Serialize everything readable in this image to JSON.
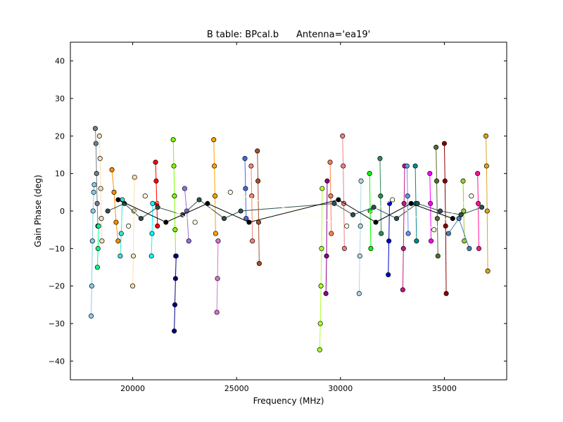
{
  "chart_data": {
    "type": "scatter",
    "title": "B table: BPcal.b      Antenna='ea19'",
    "xlabel": "Frequency (MHz)",
    "ylabel": "Gain Phase (deg)",
    "xlim": [
      17000,
      38000
    ],
    "ylim": [
      -45,
      45
    ],
    "xticks": [
      20000,
      25000,
      30000,
      35000
    ],
    "yticks": [
      -40,
      -30,
      -20,
      -10,
      0,
      10,
      20,
      30,
      40
    ],
    "grid": false,
    "legend": "none",
    "series": [
      {
        "color": "#87ceeb",
        "x": [
          18000,
          18030,
          18060,
          18090,
          18120,
          18150
        ],
        "y": [
          -28,
          -20,
          -8,
          0,
          5,
          7
        ]
      },
      {
        "color": "#708090",
        "x": [
          18200,
          18230,
          18260,
          18290,
          18320
        ],
        "y": [
          22,
          18,
          10,
          2,
          -4
        ]
      },
      {
        "color": "#f5deb3",
        "x": [
          18400,
          18430,
          18460,
          18490,
          18520
        ],
        "y": [
          20,
          14,
          6,
          -2,
          -8
        ]
      },
      {
        "color": "#00ff7f",
        "x": [
          18300,
          18330,
          18360
        ],
        "y": [
          -15,
          -10,
          -4
        ]
      },
      {
        "color": "#ff8c00",
        "x": [
          19000,
          19100,
          19200,
          19300
        ],
        "y": [
          11,
          5,
          -3,
          -8
        ]
      },
      {
        "color": "#40e0d0",
        "x": [
          19400,
          19450,
          19500
        ],
        "y": [
          -12,
          -6,
          3
        ]
      },
      {
        "color": "#ffdead",
        "x": [
          20000,
          20030,
          20060,
          20090
        ],
        "y": [
          -20,
          -12,
          0,
          9
        ]
      },
      {
        "color": "#00ffff",
        "x": [
          20900,
          20930,
          20960
        ],
        "y": [
          -12,
          -6,
          2
        ]
      },
      {
        "color": "#ff0000",
        "x": [
          21100,
          21130,
          21160,
          21190
        ],
        "y": [
          13,
          8,
          2,
          -4
        ]
      },
      {
        "color": "#7cfc00",
        "x": [
          21950,
          21980,
          22010,
          22040,
          22070
        ],
        "y": [
          19,
          12,
          4,
          -5,
          -12
        ]
      },
      {
        "color": "#000080",
        "x": [
          22000,
          22030,
          22060,
          22090
        ],
        "y": [
          -32,
          -25,
          -18,
          -12
        ]
      },
      {
        "color": "#9370db",
        "x": [
          22500,
          22600,
          22700
        ],
        "y": [
          6,
          0,
          -8
        ]
      },
      {
        "color": "#ffa500",
        "x": [
          23900,
          23930,
          23960,
          23990
        ],
        "y": [
          19,
          12,
          4,
          -6
        ]
      },
      {
        "color": "#da70d6",
        "x": [
          24050,
          24080,
          24110
        ],
        "y": [
          -27,
          -18,
          -8
        ]
      },
      {
        "color": "#4169e1",
        "x": [
          25400,
          25430,
          25460
        ],
        "y": [
          14,
          6,
          -2
        ]
      },
      {
        "color": "#fa8072",
        "x": [
          25700,
          25730,
          25760
        ],
        "y": [
          12,
          4,
          -8
        ]
      },
      {
        "color": "#a0522d",
        "x": [
          26000,
          26030,
          26060,
          26090
        ],
        "y": [
          16,
          8,
          -3,
          -14
        ]
      },
      {
        "color": "#adff2f",
        "x": [
          29000,
          29030,
          29060,
          29090,
          29120
        ],
        "y": [
          -37,
          -30,
          -20,
          -10,
          6
        ]
      },
      {
        "color": "#8b008b",
        "x": [
          29300,
          29330,
          29360
        ],
        "y": [
          -22,
          -12,
          8
        ]
      },
      {
        "color": "#ff7f50",
        "x": [
          29500,
          29530,
          29560
        ],
        "y": [
          13,
          4,
          -6
        ]
      },
      {
        "color": "#f08080",
        "x": [
          30100,
          30130,
          30160,
          30190
        ],
        "y": [
          20,
          12,
          2,
          -10
        ]
      },
      {
        "color": "#add8e6",
        "x": [
          30900,
          30930,
          30960,
          30990
        ],
        "y": [
          -22,
          -12,
          -4,
          8
        ]
      },
      {
        "color": "#00ff00",
        "x": [
          31400,
          31430,
          31460
        ],
        "y": [
          10,
          0,
          -10
        ]
      },
      {
        "color": "#2e8b57",
        "x": [
          31900,
          31930,
          31960
        ],
        "y": [
          14,
          4,
          -6
        ]
      },
      {
        "color": "#0000cd",
        "x": [
          32300,
          32330,
          32360
        ],
        "y": [
          -17,
          -8,
          2
        ]
      },
      {
        "color": "#c71585",
        "x": [
          33000,
          33030,
          33060,
          33090
        ],
        "y": [
          -21,
          -10,
          2,
          12
        ]
      },
      {
        "color": "#6495ed",
        "x": [
          33200,
          33230,
          33260
        ],
        "y": [
          12,
          4,
          -6
        ]
      },
      {
        "color": "#008b8b",
        "x": [
          33600,
          33630,
          33660
        ],
        "y": [
          12,
          2,
          -8
        ]
      },
      {
        "color": "#ff00ff",
        "x": [
          34300,
          34330,
          34360
        ],
        "y": [
          10,
          2,
          -8
        ]
      },
      {
        "color": "#556b2f",
        "x": [
          34600,
          34630,
          34660,
          34690
        ],
        "y": [
          17,
          8,
          -2,
          -12
        ]
      },
      {
        "color": "#8b0000",
        "x": [
          35000,
          35030,
          35060,
          35090
        ],
        "y": [
          18,
          8,
          -4,
          -22
        ]
      },
      {
        "color": "#9acd32",
        "x": [
          35900,
          35930,
          35960
        ],
        "y": [
          8,
          0,
          -8
        ]
      },
      {
        "color": "#ff1493",
        "x": [
          36600,
          36630,
          36660
        ],
        "y": [
          10,
          2,
          -10
        ]
      },
      {
        "color": "#daa520",
        "x": [
          37000,
          37030,
          37060,
          37090
        ],
        "y": [
          20,
          12,
          0,
          -16
        ]
      },
      {
        "color": "#4682b4",
        "x": [
          35200,
          35700,
          36200
        ],
        "y": [
          -6,
          -2,
          -10
        ]
      },
      {
        "color": "#2f4f4f",
        "x": [
          18800,
          19600,
          20400,
          21200,
          22400,
          23200,
          24400,
          25200,
          29700,
          30600,
          31600,
          32700,
          33700,
          34800,
          35800,
          36800
        ],
        "y": [
          0,
          2,
          -2,
          1,
          -1,
          3,
          -2,
          0,
          2,
          -1,
          1,
          -2,
          2,
          0,
          -1,
          1
        ]
      },
      {
        "color": "#ffffe0",
        "x": [
          19800,
          20600,
          23000,
          24700,
          30300,
          32500,
          34500,
          36300
        ],
        "y": [
          -4,
          4,
          -3,
          5,
          -4,
          3,
          -5,
          4
        ]
      },
      {
        "color": "#000000",
        "x": [
          19300,
          21600,
          23600,
          25600,
          29900,
          31700,
          33400,
          35400
        ],
        "y": [
          3,
          -3,
          2,
          -3,
          3,
          -3,
          2,
          -2
        ]
      }
    ]
  }
}
